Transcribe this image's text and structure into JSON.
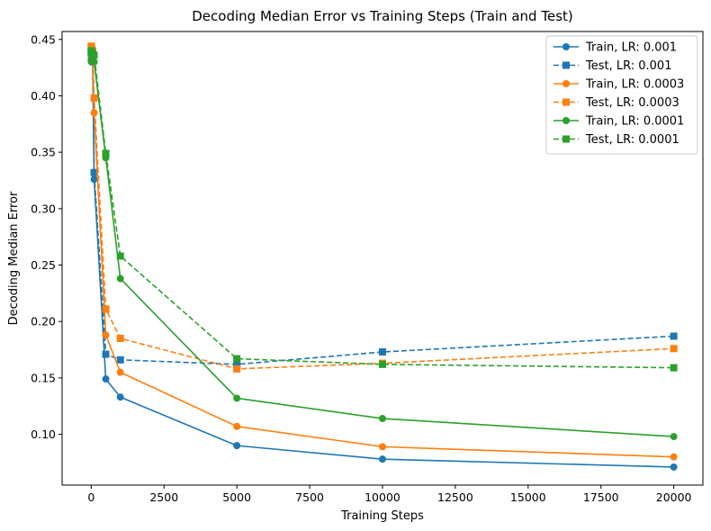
{
  "chart_data": {
    "type": "line",
    "title": "Decoding Median Error vs Training Steps (Train and Test)",
    "xlabel": "Training Steps",
    "ylabel": "Decoding Median Error",
    "xlim": [
      -1000,
      21000
    ],
    "ylim": [
      0.055,
      0.457
    ],
    "xticks": [
      0,
      2500,
      5000,
      7500,
      10000,
      12500,
      15000,
      17500,
      20000
    ],
    "yticks": [
      0.1,
      0.15,
      0.2,
      0.25,
      0.3,
      0.35,
      0.4,
      0.45
    ],
    "xtick_labels": [
      "0",
      "2500",
      "5000",
      "7500",
      "10000",
      "12500",
      "15000",
      "17500",
      "20000"
    ],
    "ytick_labels": [
      "0.10",
      "0.15",
      "0.20",
      "0.25",
      "0.30",
      "0.35",
      "0.40",
      "0.45"
    ],
    "grid": false,
    "legend_position": "top-right",
    "x": [
      0,
      10,
      50,
      100,
      500,
      1000,
      5000,
      10000,
      20000
    ],
    "series": [
      {
        "name": "Train, LR: 0.001",
        "color": "#1f77b4",
        "style": "solid",
        "marker": "circle",
        "values": [
          0.432,
          0.43,
          0.431,
          0.326,
          0.149,
          0.133,
          0.09,
          0.078,
          0.071
        ]
      },
      {
        "name": "Test, LR: 0.001",
        "color": "#1f77b4",
        "style": "dashed",
        "marker": "square",
        "values": [
          0.438,
          0.434,
          0.433,
          0.332,
          0.171,
          0.166,
          0.162,
          0.173,
          0.187
        ]
      },
      {
        "name": "Train, LR: 0.0003",
        "color": "#ff7f0e",
        "style": "solid",
        "marker": "circle",
        "values": [
          0.437,
          0.436,
          0.433,
          0.385,
          0.188,
          0.155,
          0.107,
          0.089,
          0.08
        ]
      },
      {
        "name": "Test, LR: 0.0003",
        "color": "#ff7f0e",
        "style": "dashed",
        "marker": "square",
        "values": [
          0.444,
          0.443,
          0.44,
          0.398,
          0.211,
          0.185,
          0.158,
          0.163,
          0.176
        ]
      },
      {
        "name": "Train, LR: 0.0001",
        "color": "#2ca02c",
        "style": "solid",
        "marker": "circle",
        "values": [
          0.431,
          0.432,
          0.431,
          0.43,
          0.345,
          0.238,
          0.132,
          0.114,
          0.098
        ]
      },
      {
        "name": "Test, LR: 0.0001",
        "color": "#2ca02c",
        "style": "dashed",
        "marker": "square",
        "values": [
          0.44,
          0.438,
          0.437,
          0.436,
          0.349,
          0.258,
          0.167,
          0.162,
          0.159
        ]
      }
    ]
  }
}
